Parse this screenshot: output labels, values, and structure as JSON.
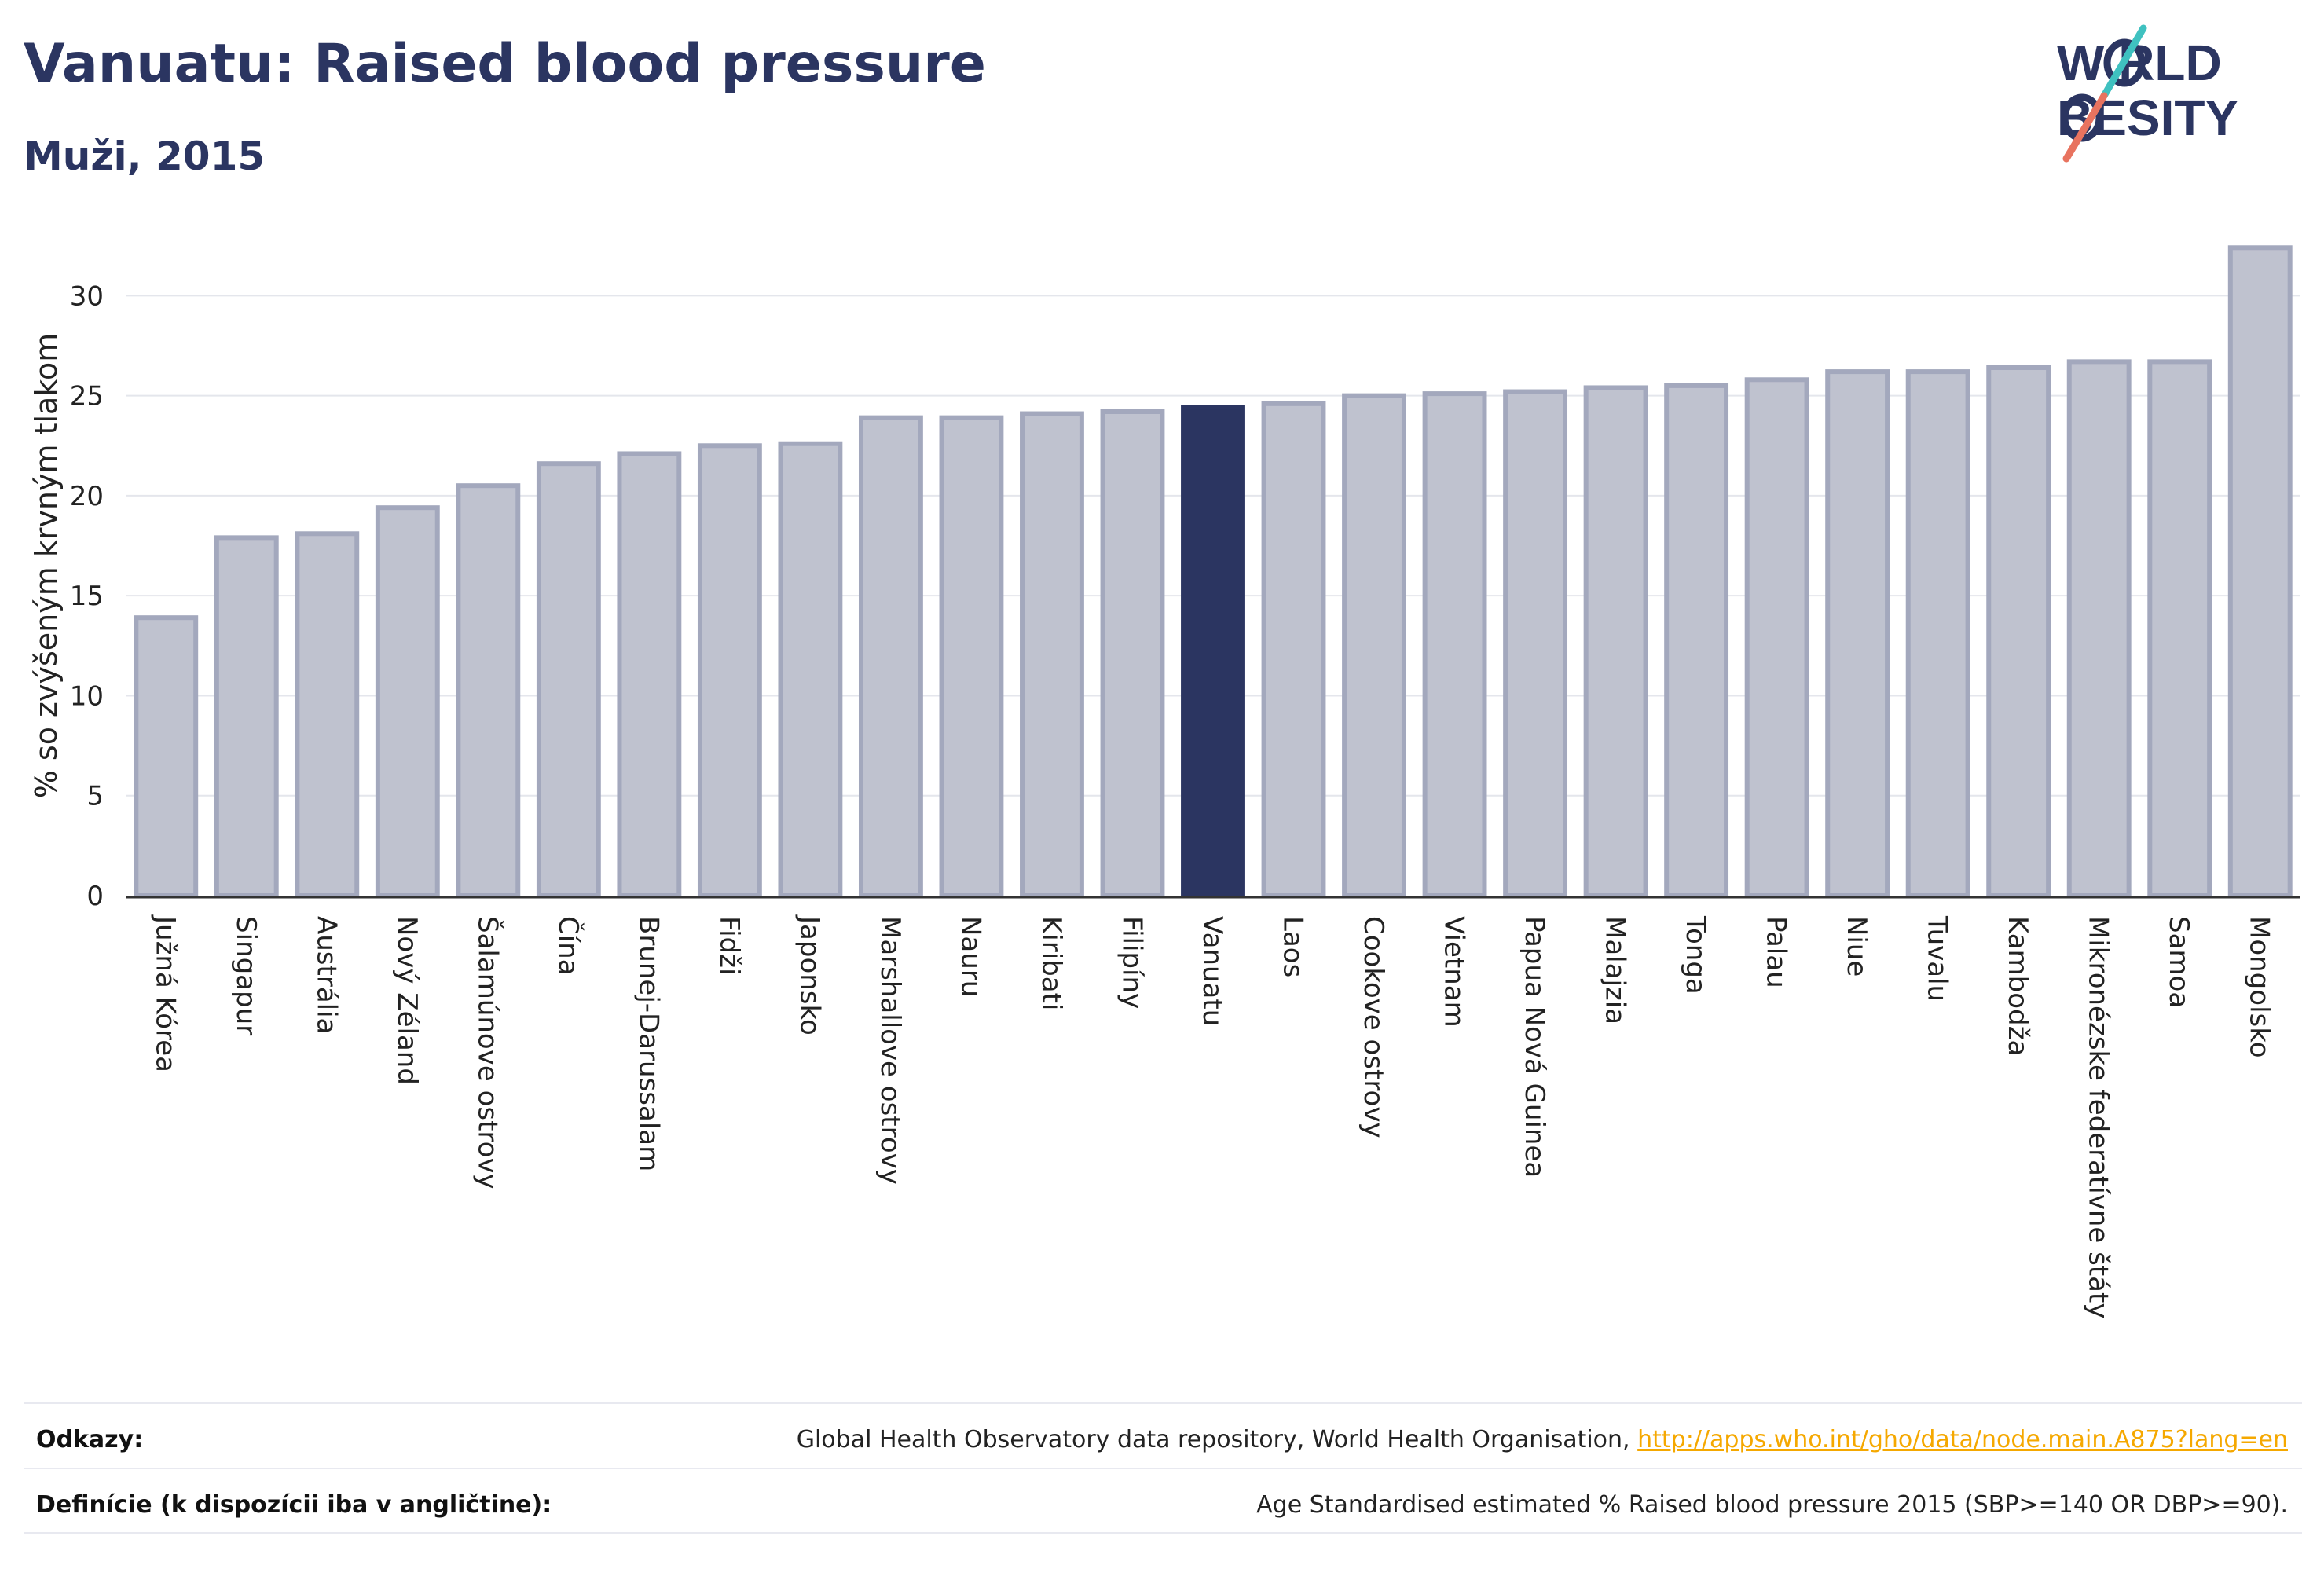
{
  "header": {
    "title": "Vanuatu: Raised blood pressure",
    "subtitle": "Muži, 2015"
  },
  "logo": {
    "line1": "W  RLD",
    "line2": "  BESITY",
    "colors": {
      "text": "#2b3561",
      "slash_top": "#3fc1c0",
      "slash_bottom": "#e8735f"
    }
  },
  "colors": {
    "bar_default": "#bfc2cf",
    "bar_default_stroke": "#a3a8bd",
    "bar_highlight": "#2b3561",
    "axis_text": "#222222",
    "grid": "#e4e6ec"
  },
  "chart_data": {
    "type": "bar",
    "ylabel": "% so zvýšeným krvným tlakom",
    "ylim": [
      0,
      33
    ],
    "yticks": [
      0,
      5,
      10,
      15,
      20,
      25,
      30
    ],
    "grid": true,
    "highlight": "Vanuatu",
    "categories": [
      "Južná Kórea",
      "Singapur",
      "Austrália",
      "Nový Zéland",
      "Šalamúnove ostrovy",
      "Čína",
      "Brunej-Darussalam",
      "Fidži",
      "Japonsko",
      "Marshallove ostrovy",
      "Nauru",
      "Kiribati",
      "Filipíny",
      "Vanuatu",
      "Laos",
      "Cookove ostrovy",
      "Vietnam",
      "Papua Nová Guinea",
      "Malajzia",
      "Tonga",
      "Palau",
      "Niue",
      "Tuvalu",
      "Kambodža",
      "Mikronézske federatívne štáty",
      "Samoa",
      "Mongolsko"
    ],
    "values": [
      13.9,
      17.9,
      18.1,
      19.4,
      20.5,
      21.6,
      22.1,
      22.5,
      22.6,
      23.9,
      23.9,
      24.1,
      24.2,
      24.4,
      24.6,
      25.0,
      25.1,
      25.2,
      25.4,
      25.5,
      25.8,
      26.2,
      26.2,
      26.4,
      26.7,
      26.7,
      32.4
    ]
  },
  "footer": {
    "sources_label": "Odkazy:",
    "sources_text": "Global Health Observatory data repository, World Health Organisation,",
    "sources_link": "http://apps.who.int/gho/data/node.main.A875?lang=en",
    "definitions_label": "Definície (k dispozícii iba v angličtine):",
    "definitions_text": "Age Standardised estimated % Raised blood pressure 2015 (SBP>=140 OR DBP>=90)."
  }
}
